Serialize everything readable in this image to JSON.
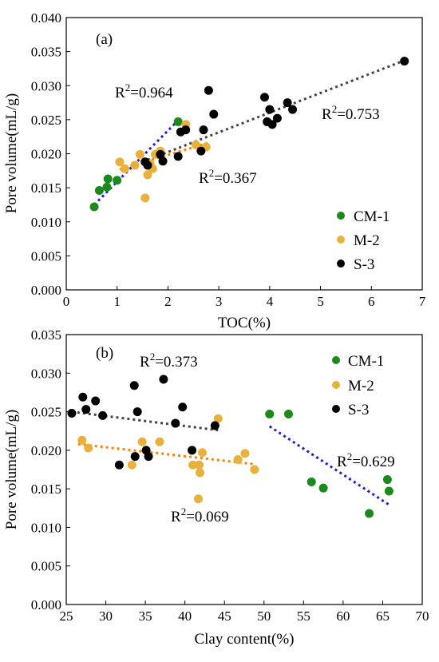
{
  "chart_data": [
    {
      "type": "scatter",
      "panel_label": "(a)",
      "xlabel": "TOC(%)",
      "ylabel": "Pore volume(mL/g)",
      "xlim": [
        0,
        7
      ],
      "ylim": [
        0,
        0.04
      ],
      "xticks": [
        0,
        1,
        2,
        3,
        4,
        5,
        6,
        7
      ],
      "yticks": [
        0.0,
        0.005,
        0.01,
        0.015,
        0.02,
        0.025,
        0.03,
        0.035,
        0.04
      ],
      "ytick_labels": [
        "0.000",
        "0.005",
        "0.010",
        "0.015",
        "0.020",
        "0.025",
        "0.030",
        "0.035",
        "0.040"
      ],
      "legend_position": "bottom-right",
      "series": [
        {
          "name": "CM-1",
          "color": "#1a8a1a",
          "points": [
            [
              0.55,
              0.0122
            ],
            [
              0.65,
              0.0146
            ],
            [
              0.8,
              0.0151
            ],
            [
              0.82,
              0.0163
            ],
            [
              1.0,
              0.0161
            ],
            [
              2.2,
              0.0247
            ]
          ],
          "fit": [
            [
              0.55,
              0.0125
            ],
            [
              2.2,
              0.0249
            ]
          ],
          "fit_color": "#1f1fd6",
          "r2_prefix": "R",
          "r2_sup": "2",
          "r2_value": "=0.964"
        },
        {
          "name": "M-2",
          "color": "#e8b13c",
          "points": [
            [
              1.05,
              0.0188
            ],
            [
              1.15,
              0.0178
            ],
            [
              1.35,
              0.0183
            ],
            [
              1.45,
              0.0199
            ],
            [
              1.55,
              0.0135
            ],
            [
              1.6,
              0.0169
            ],
            [
              1.65,
              0.0185
            ],
            [
              1.7,
              0.0178
            ],
            [
              1.75,
              0.0199
            ],
            [
              1.85,
              0.0204
            ],
            [
              2.35,
              0.0243
            ],
            [
              2.55,
              0.0213
            ],
            [
              2.75,
              0.021
            ]
          ],
          "fit": [
            [
              1.05,
              0.0177
            ],
            [
              2.8,
              0.0216
            ]
          ],
          "fit_color": "#ff7f00",
          "r2_prefix": "R",
          "r2_sup": "2",
          "r2_value": "=0.367"
        },
        {
          "name": "S-3",
          "color": "#000000",
          "points": [
            [
              1.55,
              0.0188
            ],
            [
              1.6,
              0.0183
            ],
            [
              1.85,
              0.0199
            ],
            [
              1.9,
              0.0189
            ],
            [
              2.2,
              0.0196
            ],
            [
              2.25,
              0.0232
            ],
            [
              2.35,
              0.0235
            ],
            [
              2.65,
              0.0204
            ],
            [
              2.7,
              0.0235
            ],
            [
              2.8,
              0.0293
            ],
            [
              2.9,
              0.0258
            ],
            [
              3.9,
              0.0283
            ],
            [
              3.95,
              0.0247
            ],
            [
              4.0,
              0.0265
            ],
            [
              4.05,
              0.0243
            ],
            [
              4.15,
              0.0252
            ],
            [
              4.35,
              0.0275
            ],
            [
              4.45,
              0.0265
            ],
            [
              6.65,
              0.0336
            ]
          ],
          "fit": [
            [
              1.5,
              0.0188
            ],
            [
              6.65,
              0.0337
            ]
          ],
          "fit_color": "#444444",
          "r2_prefix": "R",
          "r2_sup": "2",
          "r2_value": "=0.753"
        }
      ]
    },
    {
      "type": "scatter",
      "panel_label": "(b)",
      "xlabel": "Clay content(%)",
      "ylabel": "Pore volume(mL/g)",
      "xlim": [
        25,
        70
      ],
      "ylim": [
        0,
        0.035
      ],
      "xticks": [
        25,
        30,
        35,
        40,
        45,
        50,
        55,
        60,
        65,
        70
      ],
      "yticks": [
        0.0,
        0.005,
        0.01,
        0.015,
        0.02,
        0.025,
        0.03,
        0.035
      ],
      "ytick_labels": [
        "0.000",
        "0.005",
        "0.010",
        "0.015",
        "0.020",
        "0.025",
        "0.030",
        "0.035"
      ],
      "legend_position": "top-right",
      "series": [
        {
          "name": "CM-1",
          "color": "#1a8a1a",
          "points": [
            [
              50.7,
              0.0247
            ],
            [
              53.1,
              0.0247
            ],
            [
              56.0,
              0.0159
            ],
            [
              57.5,
              0.0151
            ],
            [
              63.3,
              0.0118
            ],
            [
              65.6,
              0.0162
            ],
            [
              65.8,
              0.0147
            ]
          ],
          "fit": [
            [
              50.7,
              0.0231
            ],
            [
              66.0,
              0.0128
            ]
          ],
          "fit_color": "#1f1fd6",
          "r2_prefix": "R",
          "r2_sup": "2",
          "r2_value": "=0.629"
        },
        {
          "name": "M-2",
          "color": "#e8b13c",
          "points": [
            [
              27.0,
              0.0213
            ],
            [
              27.8,
              0.0203
            ],
            [
              33.3,
              0.0181
            ],
            [
              34.6,
              0.0211
            ],
            [
              36.8,
              0.0211
            ],
            [
              41.0,
              0.0181
            ],
            [
              41.7,
              0.0137
            ],
            [
              41.8,
              0.0181
            ],
            [
              41.9,
              0.0171
            ],
            [
              42.2,
              0.0197
            ],
            [
              44.2,
              0.0241
            ],
            [
              46.7,
              0.0188
            ],
            [
              47.6,
              0.0196
            ],
            [
              48.8,
              0.0175
            ]
          ],
          "fit": [
            [
              26.5,
              0.0208
            ],
            [
              48.8,
              0.0182
            ]
          ],
          "fit_color": "#ff7f00",
          "r2_prefix": "R",
          "r2_sup": "2",
          "r2_value": "=0.069"
        },
        {
          "name": "S-3",
          "color": "#000000",
          "points": [
            [
              25.7,
              0.0248
            ],
            [
              27.1,
              0.0269
            ],
            [
              27.5,
              0.0253
            ],
            [
              28.7,
              0.0264
            ],
            [
              29.6,
              0.0245
            ],
            [
              31.7,
              0.0181
            ],
            [
              33.6,
              0.0284
            ],
            [
              33.7,
              0.0192
            ],
            [
              34.0,
              0.025
            ],
            [
              35.1,
              0.02
            ],
            [
              35.4,
              0.0192
            ],
            [
              37.3,
              0.0292
            ],
            [
              38.8,
              0.0235
            ],
            [
              39.7,
              0.0256
            ],
            [
              40.9,
              0.02
            ],
            [
              43.8,
              0.0232
            ]
          ],
          "fit": [
            [
              25.7,
              0.025
            ],
            [
              44.2,
              0.0226
            ]
          ],
          "fit_color": "#444444",
          "r2_prefix": "R",
          "r2_sup": "2",
          "r2_value": "=0.373"
        }
      ]
    }
  ]
}
